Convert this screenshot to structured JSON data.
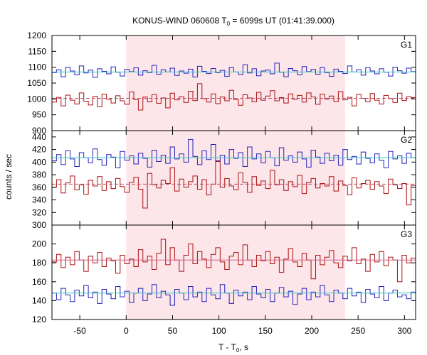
{
  "chart_data": {
    "type": "line",
    "title_main": "KONUS-WIND 060608 T",
    "title_sub": "0",
    "title_rest": " = 6099s UT (01:41:39.000)",
    "ylabel": "counts / sec",
    "xlabel_main": "T - T",
    "xlabel_sub": "0",
    "xlabel_rest": ", s",
    "xlim": [
      -80,
      312
    ],
    "x_ticks": [
      -50,
      0,
      50,
      100,
      150,
      200,
      250,
      300
    ],
    "x_tick_labels": [
      "-50",
      "0",
      "50",
      "100",
      "150",
      "200",
      "250",
      "300"
    ],
    "shaded_interval": [
      0,
      236
    ],
    "shade_color": "#fde6e9",
    "panels": [
      {
        "name": "G1",
        "ylim": [
          900,
          1200
        ],
        "y_ticks": [
          900,
          950,
          1000,
          1050,
          1100,
          1150,
          1200
        ],
        "y_tick_labels": [
          "900",
          "950",
          "1000",
          "1050",
          "1100",
          "1150",
          "1200"
        ],
        "series": [
          {
            "color": "#2222bb",
            "level": 1085,
            "level_color": "#44c8c8",
            "level_style": "solid",
            "values": [
              1083,
              1092,
              1070,
              1100,
              1088,
              1076,
              1104,
              1082,
              1091,
              1068,
              1095,
              1087,
              1079,
              1101,
              1084,
              1072,
              1093,
              1086,
              1098,
              1075,
              1089,
              1083,
              1106,
              1078,
              1092,
              1085,
              1097,
              1074,
              1088,
              1081,
              1094,
              1069,
              1103,
              1087,
              1080,
              1096,
              1083,
              1090,
              1071,
              1099,
              1085,
              1077,
              1108,
              1082,
              1095,
              1073,
              1088,
              1091,
              1079,
              1113,
              1084,
              1070,
              1096,
              1089,
              1076,
              1102,
              1086,
              1093,
              1078,
              1099,
              1083,
              1071,
              1094,
              1087,
              1080,
              1104,
              1085,
              1092,
              1075,
              1098,
              1088,
              1079,
              1095,
              1084,
              1072,
              1100,
              1089,
              1081,
              1097,
              1086
            ]
          },
          {
            "color": "#aa1111",
            "level": 1002,
            "level_color": "#c0506a",
            "level_style": "dashed",
            "values": [
              990,
              1005,
              978,
              1012,
              996,
              984,
              1019,
              993,
              981,
              1008,
              975,
              1015,
              999,
              987,
              1010,
              994,
              983,
              1022,
              998,
              965,
              1006,
              991,
              1014,
              986,
              1003,
              972,
              1018,
              997,
              1007,
              989,
              1024,
              995,
              1048,
              1001,
              990,
              1016,
              985,
              1006,
              994,
              1027,
              998,
              980,
              1013,
              1003,
              991,
              1021,
              996,
              1009,
              1026,
              994,
              1004,
              987,
              1016,
              999,
              1011,
              990,
              1019,
              1006,
              983,
              1015,
              1000,
              1009,
              992,
              1023,
              997,
              1005,
              978,
              1014,
              1002,
              991,
              1017,
              996,
              984,
              1011,
              1001,
              989,
              1018,
              995,
              1007,
              1004
            ]
          }
        ]
      },
      {
        "name": "G2",
        "ylim": [
          300,
          450
        ],
        "y_ticks": [
          300,
          320,
          340,
          360,
          380,
          400,
          420,
          440
        ],
        "y_tick_labels": [
          "300",
          "320",
          "340",
          "360",
          "380",
          "400",
          "420",
          "440"
        ],
        "series": [
          {
            "color": "#2222bb",
            "level": 407,
            "level_color": "#44c8c8",
            "level_style": "solid",
            "values": [
              402,
              412,
              396,
              418,
              405,
              393,
              415,
              407,
              399,
              421,
              404,
              395,
              412,
              408,
              391,
              417,
              403,
              410,
              397,
              414,
              406,
              392,
              419,
              401,
              411,
              398,
              424,
              405,
              413,
              400,
              436,
              409,
              396,
              418,
              404,
              428,
              402,
              411,
              397,
              420,
              406,
              415,
              393,
              424,
              405,
              413,
              399,
              417,
              407,
              394,
              423,
              403,
              410,
              400,
              416,
              405,
              392,
              419,
              408,
              398,
              414,
              402,
              411,
              395,
              420,
              404,
              409,
              397,
              416,
              406,
              399,
              413,
              403,
              391,
              417,
              405,
              410,
              398,
              414,
              407
            ]
          },
          {
            "color": "#aa1111",
            "level": 365,
            "level_color": "#c0506a",
            "level_style": "dashed",
            "values": [
              360,
              372,
              351,
              367,
              378,
              356,
              364,
              349,
              371,
              362,
              377,
              355,
              369,
              358,
              374,
              361,
              352,
              368,
              376,
              357,
              327,
              382,
              364,
              359,
              371,
              366,
              391,
              354,
              373,
              360,
              369,
              378,
              357,
              372,
              348,
              365,
              401,
              360,
              374,
              362,
              356,
              383,
              368,
              352,
              377,
              363,
              370,
              358,
              387,
              364,
              372,
              355,
              369,
              361,
              379,
              350,
              368,
              374,
              359,
              366,
              362,
              377,
              354,
              370,
              363,
              348,
              375,
              359,
              366,
              371,
              357,
              369,
              362,
              350,
              373,
              364,
              358,
              366,
              332,
              363
            ]
          }
        ]
      },
      {
        "name": "G3",
        "ylim": [
          120,
          220
        ],
        "y_ticks": [
          120,
          140,
          160,
          180,
          200
        ],
        "y_tick_labels": [
          "120",
          "140",
          "160",
          "180",
          "200"
        ],
        "series": [
          {
            "color": "#aa1111",
            "level": 183,
            "level_color": "#d06090",
            "level_style": "solid",
            "values": [
              181,
              189,
              175,
              186,
              178,
              192,
              183,
              171,
              187,
              180,
              191,
              176,
              185,
              182,
              169,
              188,
              179,
              184,
              176,
              194,
              181,
              187,
              173,
              190,
              205,
              178,
              196,
              183,
              171,
              188,
              200,
              179,
              192,
              184,
              175,
              189,
              196,
              181,
              173,
              187,
              191,
              178,
              199,
              183,
              176,
              188,
              182,
              192,
              179,
              186,
              170,
              184,
              195,
              181,
              176,
              190,
              183,
              163,
              188,
              178,
              186,
              193,
              180,
              175,
              187,
              182,
              196,
              179,
              184,
              171,
              189,
              181,
              192,
              177,
              186,
              183,
              160,
              188,
              180,
              185
            ]
          },
          {
            "color": "#2222bb",
            "level": 148,
            "level_color": "#44c8c8",
            "level_style": "solid",
            "values": [
              148,
              141,
              153,
              146,
              139,
              151,
              145,
              156,
              143,
              149,
              137,
              152,
              147,
              142,
              155,
              144,
              150,
              138,
              148,
              153,
              140,
              147,
              157,
              143,
              150,
              146,
              135,
              152,
              148,
              141,
              155,
              144,
              149,
              139,
              153,
              146,
              142,
              157,
              148,
              137,
              151,
              145,
              149,
              141,
              155,
              147,
              143,
              152,
              139,
              148,
              154,
              144,
              150,
              136,
              147,
              153,
              141,
              149,
              144,
              156,
              146,
              139,
              151,
              148,
              142,
              153,
              145,
              149,
              138,
              152,
              147,
              143,
              155,
              140,
              148,
              151,
              144,
              146,
              142,
              149
            ]
          }
        ]
      }
    ]
  }
}
